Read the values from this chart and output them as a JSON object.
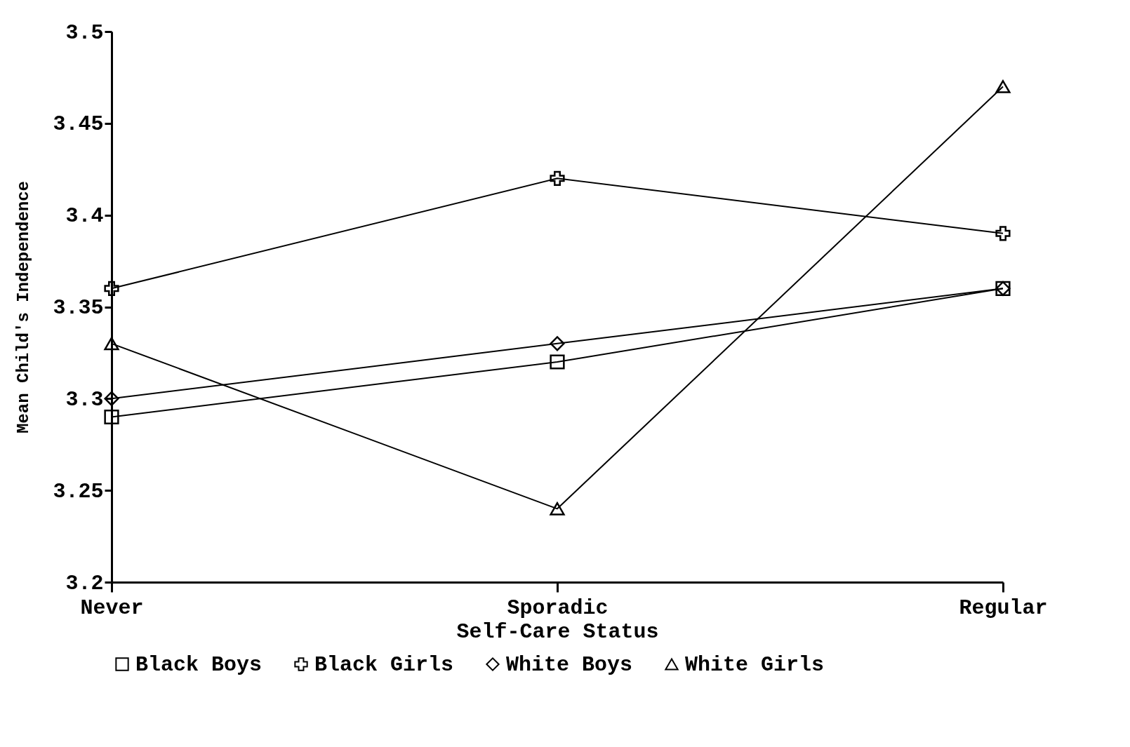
{
  "chart_data": {
    "type": "line",
    "xlabel": "Self-Care Status",
    "ylabel": "Mean Child's Independence",
    "categories": [
      "Never",
      "Sporadic",
      "Regular"
    ],
    "series": [
      {
        "name": "Black Boys",
        "color": "#000000",
        "marker": "square",
        "values": [
          3.29,
          3.32,
          3.36
        ]
      },
      {
        "name": "Black Girls",
        "color": "#000000",
        "marker": "cross",
        "values": [
          3.36,
          3.42,
          3.39
        ]
      },
      {
        "name": "White Boys",
        "color": "#000000",
        "marker": "diamond",
        "values": [
          3.3,
          3.33,
          3.36
        ]
      },
      {
        "name": "White Girls",
        "color": "#000000",
        "marker": "triangle",
        "values": [
          3.33,
          3.24,
          3.47
        ]
      }
    ],
    "ylim": [
      3.2,
      3.5
    ],
    "yticks": [
      3.2,
      3.25,
      3.3,
      3.35,
      3.4,
      3.45,
      3.5
    ],
    "grid": false,
    "legend": "bottom",
    "line_style": "solid"
  }
}
